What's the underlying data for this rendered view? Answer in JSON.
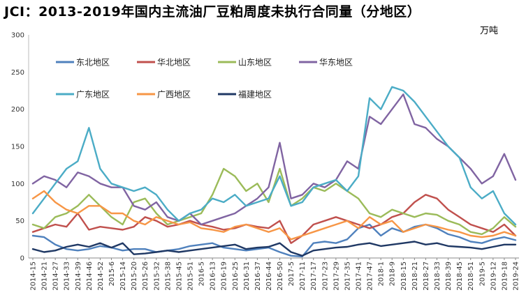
{
  "chart_data": {
    "type": "line",
    "title": "JCI：2013-2019年国内主流油厂豆粕周度未执行合同量（分地区）",
    "unit": "万吨",
    "ylim": [
      0,
      300
    ],
    "yticks": [
      0,
      50,
      100,
      150,
      200,
      250,
      300
    ],
    "grid": false,
    "legend_position": "top-left",
    "x_labels": [
      "2014-15",
      "2014-21",
      "2014-27",
      "2014-33",
      "2014-39",
      "2014-46",
      "2014-52",
      "2015-6",
      "2015-14",
      "2015-20",
      "2015-26",
      "2015-32",
      "2015-38",
      "2015-45",
      "2015-51",
      "2016-5",
      "2016-13",
      "2016-19",
      "2016-25",
      "2016-31",
      "2016-37",
      "2016-44",
      "2016-50",
      "2017-5",
      "2017-11",
      "2017-17",
      "2017-23",
      "2017-29",
      "2017-35",
      "2017-41",
      "2017-47",
      "2018-1",
      "2018-9",
      "2018-15",
      "2018-21",
      "2018-27",
      "2018-33",
      "2018-39",
      "2018-45",
      "2018-51",
      "2019-5",
      "2019-12",
      "2019-18",
      "2019-24"
    ],
    "series": [
      {
        "name": "东北地区",
        "color": "#4f81bd",
        "values": [
          30,
          28,
          18,
          12,
          10,
          12,
          16,
          14,
          10,
          12,
          12,
          8,
          10,
          12,
          16,
          18,
          20,
          14,
          12,
          10,
          12,
          14,
          8,
          3,
          2,
          20,
          22,
          20,
          25,
          40,
          45,
          30,
          40,
          35,
          42,
          45,
          40,
          32,
          28,
          22,
          20,
          25,
          28,
          24
        ]
      },
      {
        "name": "华北地区",
        "color": "#c0504d",
        "values": [
          35,
          40,
          45,
          42,
          60,
          38,
          42,
          40,
          38,
          42,
          55,
          50,
          42,
          45,
          50,
          45,
          42,
          38,
          40,
          45,
          42,
          40,
          50,
          20,
          30,
          45,
          50,
          55,
          50,
          45,
          40,
          45,
          55,
          60,
          75,
          85,
          80,
          65,
          55,
          45,
          40,
          35,
          45,
          30
        ]
      },
      {
        "name": "山东地区",
        "color": "#9bbb59",
        "values": [
          45,
          40,
          55,
          60,
          70,
          85,
          70,
          55,
          45,
          75,
          80,
          60,
          45,
          50,
          55,
          60,
          85,
          120,
          110,
          90,
          100,
          75,
          120,
          70,
          80,
          95,
          90,
          100,
          90,
          80,
          60,
          55,
          65,
          60,
          55,
          60,
          58,
          50,
          45,
          35,
          32,
          40,
          55,
          42
        ]
      },
      {
        "name": "华东地区",
        "color": "#8064a2",
        "values": [
          100,
          110,
          105,
          95,
          115,
          110,
          100,
          95,
          95,
          70,
          65,
          75,
          55,
          50,
          60,
          45,
          50,
          55,
          60,
          70,
          80,
          95,
          155,
          80,
          85,
          100,
          95,
          105,
          130,
          120,
          190,
          180,
          200,
          220,
          180,
          175,
          160,
          150,
          135,
          120,
          100,
          110,
          140,
          105
        ]
      },
      {
        "name": "广东地区",
        "color": "#4bacc6",
        "values": [
          60,
          80,
          100,
          120,
          130,
          175,
          120,
          100,
          95,
          90,
          95,
          85,
          65,
          50,
          60,
          65,
          80,
          75,
          85,
          70,
          75,
          80,
          110,
          70,
          75,
          95,
          100,
          105,
          90,
          110,
          215,
          200,
          230,
          225,
          210,
          190,
          170,
          150,
          135,
          95,
          80,
          90,
          60,
          45
        ]
      },
      {
        "name": "广西地区",
        "color": "#f79646",
        "values": [
          80,
          90,
          75,
          65,
          60,
          70,
          70,
          60,
          60,
          50,
          45,
          55,
          50,
          45,
          48,
          40,
          38,
          35,
          42,
          45,
          40,
          35,
          40,
          25,
          30,
          35,
          40,
          45,
          50,
          40,
          55,
          45,
          50,
          35,
          40,
          45,
          42,
          38,
          35,
          30,
          28,
          30,
          35,
          30
        ]
      },
      {
        "name": "福建地区",
        "color": "#1f3864",
        "values": [
          12,
          8,
          10,
          15,
          18,
          15,
          20,
          14,
          20,
          5,
          6,
          8,
          10,
          8,
          10,
          12,
          14,
          16,
          18,
          12,
          14,
          15,
          20,
          8,
          3,
          10,
          12,
          14,
          15,
          18,
          20,
          16,
          18,
          20,
          22,
          18,
          20,
          16,
          15,
          14,
          12,
          15,
          18,
          18
        ]
      }
    ]
  }
}
